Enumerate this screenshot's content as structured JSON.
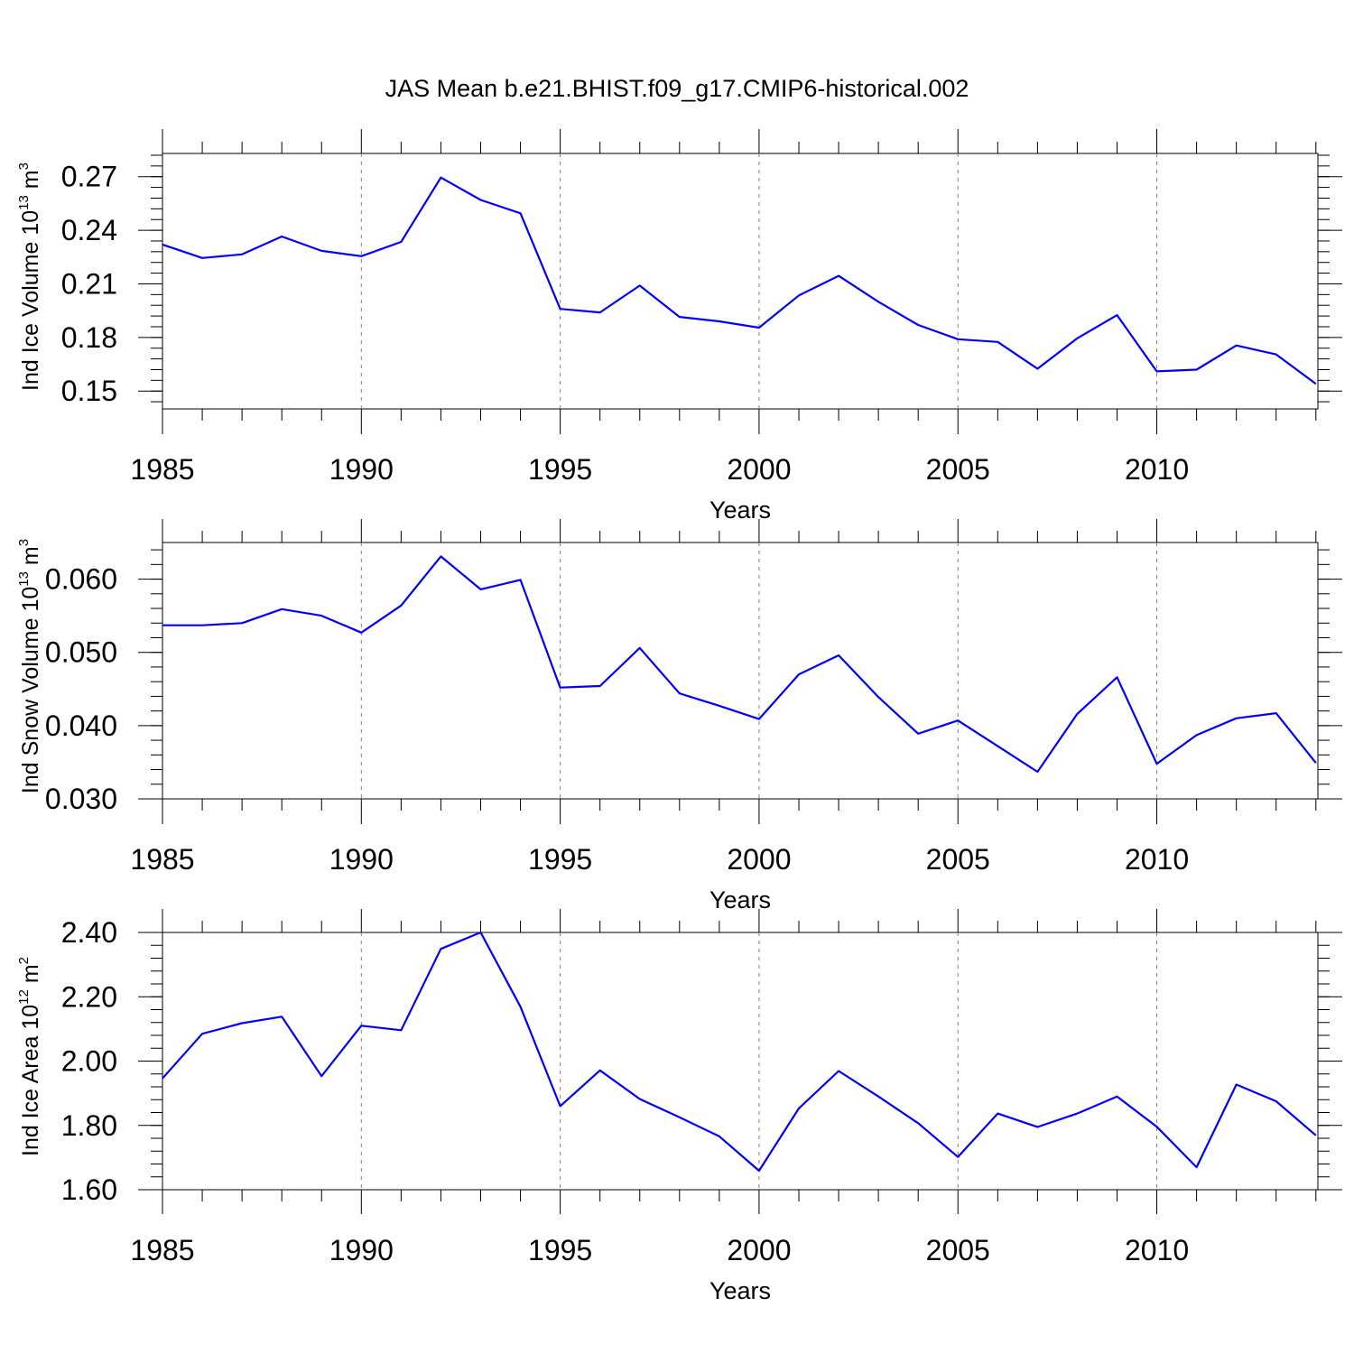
{
  "figure": {
    "title": "JAS Mean b.e21.BHIST.f09_g17.CMIP6-historical.002"
  },
  "colors": {
    "series": "#0000ff",
    "axis": "#000000",
    "grid": "#808080"
  },
  "chart_data": [
    {
      "type": "line",
      "title": "",
      "xlabel": "Years",
      "ylabel": "Ind Ice Volume 10",
      "ylabel_exp": "13",
      "ylabel_unit": "m",
      "ylabel_unit_exp": "3",
      "xlim": [
        1985,
        2014
      ],
      "ylim": [
        0.14,
        0.283
      ],
      "xticks": [
        "1985",
        "1990",
        "1995",
        "2000",
        "2005",
        "2010"
      ],
      "yticks": [
        "0.15",
        "0.18",
        "0.21",
        "0.24",
        "0.27"
      ],
      "grid": "dashed vertical at major x ticks",
      "x": [
        1985,
        1986,
        1987,
        1988,
        1989,
        1990,
        1991,
        1992,
        1993,
        1994,
        1995,
        1996,
        1997,
        1998,
        1999,
        2000,
        2001,
        2002,
        2003,
        2004,
        2005,
        2006,
        2007,
        2008,
        2009,
        2010,
        2011,
        2012,
        2013,
        2014
      ],
      "series": [
        {
          "values": [
            0.232,
            0.2245,
            0.2265,
            0.2365,
            0.2285,
            0.2255,
            0.2335,
            0.2695,
            0.257,
            0.2495,
            0.196,
            0.194,
            0.209,
            0.1915,
            0.189,
            0.1855,
            0.2035,
            0.2145,
            0.2,
            0.187,
            0.179,
            0.1775,
            0.1625,
            0.1795,
            0.1925,
            0.161,
            0.162,
            0.1755,
            0.1705,
            0.154
          ]
        }
      ]
    },
    {
      "type": "line",
      "title": "",
      "xlabel": "Years",
      "ylabel": "Ind Snow Volume 10",
      "ylabel_exp": "13",
      "ylabel_unit": "m",
      "ylabel_unit_exp": "3",
      "xlim": [
        1985,
        2014
      ],
      "ylim": [
        0.03,
        0.065
      ],
      "xticks": [
        "1985",
        "1990",
        "1995",
        "2000",
        "2005",
        "2010"
      ],
      "yticks": [
        "0.030",
        "0.040",
        "0.050",
        "0.060"
      ],
      "grid": "dashed vertical at major x ticks",
      "x": [
        1985,
        1986,
        1987,
        1988,
        1989,
        1990,
        1991,
        1992,
        1993,
        1994,
        1995,
        1996,
        1997,
        1998,
        1999,
        2000,
        2001,
        2002,
        2003,
        2004,
        2005,
        2006,
        2007,
        2008,
        2009,
        2010,
        2011,
        2012,
        2013,
        2014
      ],
      "series": [
        {
          "values": [
            0.0537,
            0.0537,
            0.054,
            0.0559,
            0.055,
            0.0527,
            0.0564,
            0.0631,
            0.0586,
            0.0599,
            0.0452,
            0.0454,
            0.0506,
            0.0444,
            0.0427,
            0.0409,
            0.047,
            0.0496,
            0.0439,
            0.0389,
            0.0407,
            0.0372,
            0.0337,
            0.0416,
            0.0466,
            0.0348,
            0.0387,
            0.041,
            0.0417,
            0.0349
          ]
        }
      ]
    },
    {
      "type": "line",
      "title": "",
      "xlabel": "Years",
      "ylabel": "Ind Ice Area 10",
      "ylabel_exp": "12",
      "ylabel_unit": "m",
      "ylabel_unit_exp": "2",
      "xlim": [
        1985,
        2014
      ],
      "ylim": [
        1.6,
        2.4
      ],
      "xticks": [
        "1985",
        "1990",
        "1995",
        "2000",
        "2005",
        "2010"
      ],
      "yticks": [
        "1.60",
        "1.80",
        "2.00",
        "2.20",
        "2.40"
      ],
      "grid": "dashed vertical at major x ticks",
      "x": [
        1985,
        1986,
        1987,
        1988,
        1989,
        1990,
        1991,
        1992,
        1993,
        1994,
        1995,
        1996,
        1997,
        1998,
        1999,
        2000,
        2001,
        2002,
        2003,
        2004,
        2005,
        2006,
        2007,
        2008,
        2009,
        2010,
        2011,
        2012,
        2013,
        2014
      ],
      "series": [
        {
          "values": [
            1.946,
            2.085,
            2.118,
            2.138,
            1.953,
            2.11,
            2.096,
            2.349,
            2.4,
            2.169,
            1.86,
            1.971,
            1.882,
            1.825,
            1.766,
            1.659,
            1.853,
            1.969,
            1.89,
            1.807,
            1.702,
            1.837,
            1.795,
            1.837,
            1.89,
            1.796,
            1.67,
            1.927,
            1.875,
            1.769
          ]
        }
      ]
    }
  ]
}
